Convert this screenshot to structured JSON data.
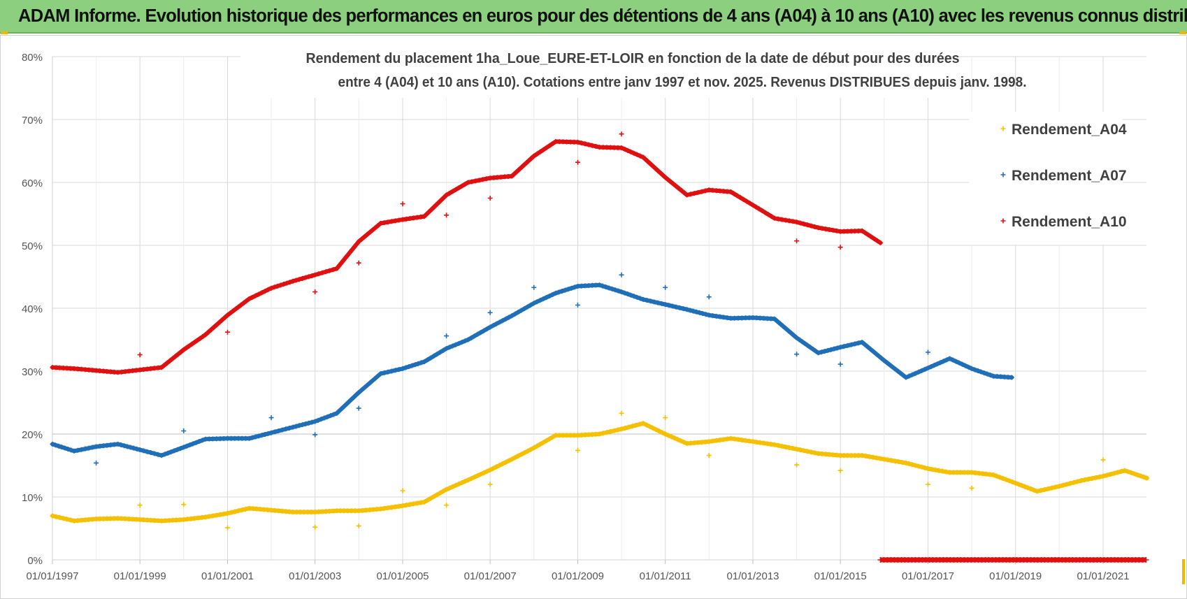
{
  "banner": {
    "title": "ADAM Informe. Evolution historique des performances en euros pour des détentions de 4 ans (A04) à 10 ans (A10) avec les revenus connus distribués"
  },
  "colors": {
    "banner_bg": "#8ccf7e",
    "a04": "#f5c000",
    "a07": "#1f6fb8",
    "a10": "#e01010",
    "grid": "#d9d9d9",
    "accent": "#f2b800"
  },
  "chart_data": {
    "type": "scatter",
    "title_lines": [
      "Rendement du placement 1ha_Loue_EURE-ET-LOIR en fonction de la date de début pour des durées",
      "entre 4 (A04) et 10 ans (A10).  Cotations entre janv 1997 et nov. 2025. Revenus DISTRIBUES depuis janv. 1998."
    ],
    "xlabel": "",
    "ylabel": "",
    "x_range": [
      "1997-01-01",
      "2022-04-01"
    ],
    "y_range": [
      0,
      80
    ],
    "y_ticks": [
      {
        "value": 0,
        "label": "0%"
      },
      {
        "value": 10,
        "label": "10%"
      },
      {
        "value": 20,
        "label": "20%"
      },
      {
        "value": 30,
        "label": "30%"
      },
      {
        "value": 40,
        "label": "40%"
      },
      {
        "value": 50,
        "label": "50%"
      },
      {
        "value": 60,
        "label": "60%"
      },
      {
        "value": 70,
        "label": "70%"
      },
      {
        "value": 80,
        "label": "80%"
      }
    ],
    "x_ticks": [
      {
        "value": "1997-01-01",
        "label": "01/01/1997"
      },
      {
        "value": "1999-01-01",
        "label": "01/01/1999"
      },
      {
        "value": "2001-01-01",
        "label": "01/01/2001"
      },
      {
        "value": "2003-01-01",
        "label": "01/01/2003"
      },
      {
        "value": "2005-01-01",
        "label": "01/01/2005"
      },
      {
        "value": "2007-01-01",
        "label": "01/01/2007"
      },
      {
        "value": "2009-01-01",
        "label": "01/01/2009"
      },
      {
        "value": "2011-01-01",
        "label": "01/01/2011"
      },
      {
        "value": "2013-01-01",
        "label": "01/01/2013"
      },
      {
        "value": "2015-01-01",
        "label": "01/01/2015"
      },
      {
        "value": "2017-01-01",
        "label": "01/01/2017"
      },
      {
        "value": "2019-01-01",
        "label": "01/01/2019"
      },
      {
        "value": "2021-01-01",
        "label": "01/01/2021"
      }
    ],
    "minor_gridlines": [
      "1998-01-01",
      "2000-01-01",
      "2002-01-01",
      "2004-01-01",
      "2006-01-01",
      "2008-01-01",
      "2010-01-01",
      "2012-01-01",
      "2014-01-01",
      "2016-01-01",
      "2018-01-01",
      "2020-01-01",
      "2022-01-01"
    ],
    "grid": true,
    "legend_position": "top-right",
    "series": [
      {
        "name": "Rendement_A04",
        "color": "#f5c000",
        "points": [
          [
            "1997-01-01",
            7.0
          ],
          [
            "1997-07-01",
            6.2
          ],
          [
            "1998-01-01",
            6.5
          ],
          [
            "1998-07-01",
            6.6
          ],
          [
            "1999-01-01",
            6.4
          ],
          [
            "1999-07-01",
            6.2
          ],
          [
            "2000-01-01",
            6.4
          ],
          [
            "2000-07-01",
            6.8
          ],
          [
            "2001-01-01",
            7.4
          ],
          [
            "2001-07-01",
            8.2
          ],
          [
            "2002-01-01",
            7.9
          ],
          [
            "2002-07-01",
            7.6
          ],
          [
            "2003-01-01",
            7.6
          ],
          [
            "2003-07-01",
            7.8
          ],
          [
            "2004-01-01",
            7.8
          ],
          [
            "2004-07-01",
            8.1
          ],
          [
            "2005-01-01",
            8.6
          ],
          [
            "2005-07-01",
            9.2
          ],
          [
            "2006-01-01",
            11.2
          ],
          [
            "2006-07-01",
            12.7
          ],
          [
            "2007-01-01",
            14.3
          ],
          [
            "2007-07-01",
            16.0
          ],
          [
            "2008-01-01",
            17.8
          ],
          [
            "2008-07-01",
            19.8
          ],
          [
            "2009-01-01",
            19.8
          ],
          [
            "2009-07-01",
            20.0
          ],
          [
            "2010-01-01",
            20.8
          ],
          [
            "2010-07-01",
            21.7
          ],
          [
            "2011-01-01",
            20.0
          ],
          [
            "2011-07-01",
            18.5
          ],
          [
            "2012-01-01",
            18.8
          ],
          [
            "2012-07-01",
            19.3
          ],
          [
            "2013-01-01",
            18.8
          ],
          [
            "2013-07-01",
            18.3
          ],
          [
            "2014-01-01",
            17.6
          ],
          [
            "2014-07-01",
            16.9
          ],
          [
            "2015-01-01",
            16.6
          ],
          [
            "2015-07-01",
            16.6
          ],
          [
            "2016-01-01",
            16.0
          ],
          [
            "2016-07-01",
            15.4
          ],
          [
            "2017-01-01",
            14.5
          ],
          [
            "2017-07-01",
            13.9
          ],
          [
            "2018-01-01",
            13.9
          ],
          [
            "2018-07-01",
            13.5
          ],
          [
            "2019-01-01",
            12.2
          ],
          [
            "2019-07-01",
            10.9
          ],
          [
            "2020-01-01",
            11.7
          ],
          [
            "2020-07-01",
            12.6
          ],
          [
            "2021-01-01",
            13.3
          ],
          [
            "2021-07-01",
            14.2
          ],
          [
            "2022-01-01",
            13.0
          ]
        ],
        "outliers": [
          [
            "1999-01-01",
            8.7
          ],
          [
            "2000-01-01",
            8.8
          ],
          [
            "2001-01-01",
            5.1
          ],
          [
            "2003-01-01",
            5.2
          ],
          [
            "2004-01-01",
            5.4
          ],
          [
            "2005-01-01",
            11.0
          ],
          [
            "2006-01-01",
            8.7
          ],
          [
            "2007-01-01",
            12.0
          ],
          [
            "2009-01-01",
            17.4
          ],
          [
            "2010-01-01",
            23.3
          ],
          [
            "2011-01-01",
            22.6
          ],
          [
            "2012-01-01",
            16.6
          ],
          [
            "2014-01-01",
            15.1
          ],
          [
            "2015-01-01",
            14.2
          ],
          [
            "2017-01-01",
            12.0
          ],
          [
            "2018-01-01",
            11.4
          ],
          [
            "2021-01-01",
            15.9
          ]
        ]
      },
      {
        "name": "Rendement_A07",
        "color": "#1f6fb8",
        "points": [
          [
            "1997-01-01",
            18.4
          ],
          [
            "1997-07-01",
            17.3
          ],
          [
            "1998-01-01",
            18.0
          ],
          [
            "1998-07-01",
            18.4
          ],
          [
            "1999-01-01",
            17.5
          ],
          [
            "1999-07-01",
            16.6
          ],
          [
            "2000-01-01",
            17.9
          ],
          [
            "2000-07-01",
            19.2
          ],
          [
            "2001-01-01",
            19.3
          ],
          [
            "2001-07-01",
            19.3
          ],
          [
            "2002-01-01",
            20.2
          ],
          [
            "2002-07-01",
            21.1
          ],
          [
            "2003-01-01",
            22.0
          ],
          [
            "2003-07-01",
            23.3
          ],
          [
            "2004-01-01",
            26.6
          ],
          [
            "2004-07-01",
            29.6
          ],
          [
            "2005-01-01",
            30.4
          ],
          [
            "2005-07-01",
            31.5
          ],
          [
            "2006-01-01",
            33.6
          ],
          [
            "2006-07-01",
            35.0
          ],
          [
            "2007-01-01",
            37.0
          ],
          [
            "2007-07-01",
            38.8
          ],
          [
            "2008-01-01",
            40.8
          ],
          [
            "2008-07-01",
            42.4
          ],
          [
            "2009-01-01",
            43.5
          ],
          [
            "2009-07-01",
            43.7
          ],
          [
            "2010-01-01",
            42.6
          ],
          [
            "2010-07-01",
            41.4
          ],
          [
            "2011-01-01",
            40.6
          ],
          [
            "2011-07-01",
            39.8
          ],
          [
            "2012-01-01",
            38.9
          ],
          [
            "2012-07-01",
            38.4
          ],
          [
            "2013-01-01",
            38.5
          ],
          [
            "2013-07-01",
            38.3
          ],
          [
            "2014-01-01",
            35.3
          ],
          [
            "2014-07-01",
            32.9
          ],
          [
            "2015-01-01",
            33.8
          ],
          [
            "2015-07-01",
            34.6
          ],
          [
            "2016-01-01",
            31.7
          ],
          [
            "2016-07-01",
            29.0
          ],
          [
            "2017-01-01",
            30.5
          ],
          [
            "2017-07-01",
            32.0
          ],
          [
            "2018-01-01",
            30.4
          ],
          [
            "2018-07-01",
            29.2
          ],
          [
            "2018-12-01",
            29.0
          ]
        ],
        "outliers": [
          [
            "1998-01-01",
            15.4
          ],
          [
            "2000-01-01",
            20.5
          ],
          [
            "2002-01-01",
            22.6
          ],
          [
            "2003-01-01",
            19.9
          ],
          [
            "2004-01-01",
            24.1
          ],
          [
            "2006-01-01",
            35.6
          ],
          [
            "2007-01-01",
            39.3
          ],
          [
            "2008-01-01",
            43.3
          ],
          [
            "2009-01-01",
            40.5
          ],
          [
            "2010-01-01",
            45.3
          ],
          [
            "2011-01-01",
            43.3
          ],
          [
            "2012-01-01",
            41.8
          ],
          [
            "2014-01-01",
            32.7
          ],
          [
            "2015-01-01",
            31.1
          ],
          [
            "2017-01-01",
            33.0
          ]
        ]
      },
      {
        "name": "Rendement_A10",
        "color": "#e01010",
        "points": [
          [
            "1997-01-01",
            30.6
          ],
          [
            "1997-07-01",
            30.4
          ],
          [
            "1998-01-01",
            30.1
          ],
          [
            "1998-07-01",
            29.8
          ],
          [
            "1999-01-01",
            30.2
          ],
          [
            "1999-07-01",
            30.6
          ],
          [
            "2000-01-01",
            33.4
          ],
          [
            "2000-07-01",
            35.8
          ],
          [
            "2001-01-01",
            38.9
          ],
          [
            "2001-07-01",
            41.5
          ],
          [
            "2002-01-01",
            43.2
          ],
          [
            "2002-07-01",
            44.3
          ],
          [
            "2003-01-01",
            45.3
          ],
          [
            "2003-07-01",
            46.3
          ],
          [
            "2004-01-01",
            50.6
          ],
          [
            "2004-07-01",
            53.5
          ],
          [
            "2005-01-01",
            54.1
          ],
          [
            "2005-07-01",
            54.6
          ],
          [
            "2006-01-01",
            58.0
          ],
          [
            "2006-07-01",
            60.0
          ],
          [
            "2007-01-01",
            60.7
          ],
          [
            "2007-07-01",
            61.0
          ],
          [
            "2008-01-01",
            64.2
          ],
          [
            "2008-07-01",
            66.5
          ],
          [
            "2009-01-01",
            66.4
          ],
          [
            "2009-07-01",
            65.6
          ],
          [
            "2010-01-01",
            65.5
          ],
          [
            "2010-07-01",
            64.0
          ],
          [
            "2011-01-01",
            60.8
          ],
          [
            "2011-07-01",
            58.0
          ],
          [
            "2012-01-01",
            58.8
          ],
          [
            "2012-07-01",
            58.5
          ],
          [
            "2013-01-01",
            56.4
          ],
          [
            "2013-07-01",
            54.3
          ],
          [
            "2014-01-01",
            53.7
          ],
          [
            "2014-07-01",
            52.8
          ],
          [
            "2015-01-01",
            52.2
          ],
          [
            "2015-07-01",
            52.3
          ],
          [
            "2015-12-01",
            50.4
          ]
        ],
        "outliers": [
          [
            "1999-01-01",
            32.6
          ],
          [
            "2001-01-01",
            36.2
          ],
          [
            "2003-01-01",
            42.6
          ],
          [
            "2004-01-01",
            47.2
          ],
          [
            "2005-01-01",
            56.6
          ],
          [
            "2006-01-01",
            54.8
          ],
          [
            "2007-01-01",
            57.5
          ],
          [
            "2009-01-01",
            63.2
          ],
          [
            "2010-01-01",
            67.7
          ],
          [
            "2014-01-01",
            50.7
          ],
          [
            "2015-01-01",
            49.7
          ]
        ],
        "zero_segment": [
          "2015-12-01",
          "2022-04-01"
        ]
      }
    ]
  }
}
